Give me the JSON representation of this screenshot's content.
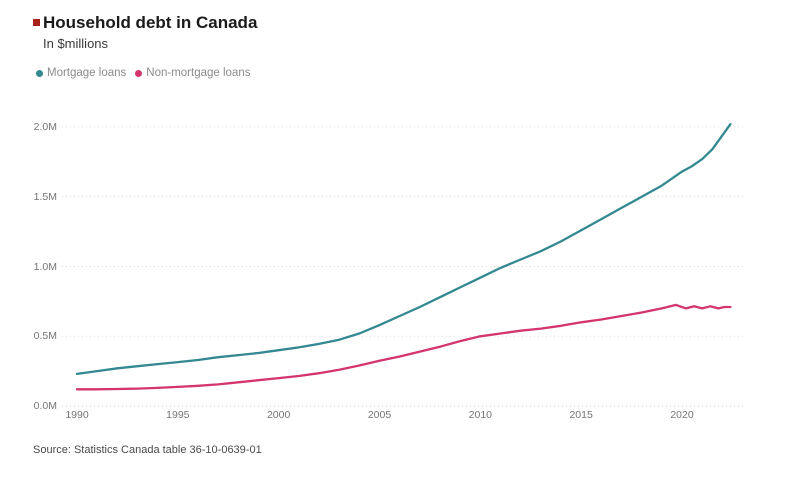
{
  "header": {
    "title": "Household debt in Canada",
    "subtitle": "In $millions",
    "accent_color": "#a8201a"
  },
  "source": {
    "text": "Source:  Statistics Canada table 36-10-0639-01"
  },
  "chart_data": {
    "type": "line",
    "title": "Household debt in Canada",
    "units": "In $millions (axis shown in M = millions of $millions)",
    "xlabel": "",
    "ylabel": "",
    "x_range": [
      1989.6,
      2023.2
    ],
    "y_range": [
      0,
      2.1
    ],
    "grid": "horizontal dotted",
    "legend_position": "top-left",
    "grid_color": "#dcdcdc",
    "axis_text_color": "#757575",
    "xticks": [
      1990,
      1995,
      2000,
      2005,
      2010,
      2015,
      2020
    ],
    "yticks": [
      {
        "v": 0.0,
        "label": "0.0M"
      },
      {
        "v": 0.5,
        "label": "0.5M"
      },
      {
        "v": 1.0,
        "label": "1.0M"
      },
      {
        "v": 1.5,
        "label": "1.5M"
      },
      {
        "v": 2.0,
        "label": "2.0M"
      }
    ],
    "series": [
      {
        "name": "Mortgage loans",
        "color": "#338891",
        "points": [
          [
            1990,
            0.23
          ],
          [
            1991,
            0.25
          ],
          [
            1992,
            0.27
          ],
          [
            1993,
            0.285
          ],
          [
            1994,
            0.3
          ],
          [
            1995,
            0.315
          ],
          [
            1996,
            0.33
          ],
          [
            1997,
            0.35
          ],
          [
            1998,
            0.365
          ],
          [
            1999,
            0.38
          ],
          [
            2000,
            0.4
          ],
          [
            2001,
            0.42
          ],
          [
            2002,
            0.445
          ],
          [
            2003,
            0.475
          ],
          [
            2004,
            0.52
          ],
          [
            2005,
            0.58
          ],
          [
            2006,
            0.645
          ],
          [
            2007,
            0.71
          ],
          [
            2008,
            0.78
          ],
          [
            2009,
            0.85
          ],
          [
            2010,
            0.92
          ],
          [
            2011,
            0.99
          ],
          [
            2012,
            1.05
          ],
          [
            2013,
            1.11
          ],
          [
            2014,
            1.18
          ],
          [
            2015,
            1.26
          ],
          [
            2016,
            1.34
          ],
          [
            2017,
            1.42
          ],
          [
            2018,
            1.5
          ],
          [
            2019,
            1.58
          ],
          [
            2020,
            1.68
          ],
          [
            2020.5,
            1.72
          ],
          [
            2021,
            1.77
          ],
          [
            2021.5,
            1.84
          ],
          [
            2022,
            1.94
          ],
          [
            2022.4,
            2.02
          ]
        ]
      },
      {
        "name": "Non-mortgage loans",
        "color": "#d5356f",
        "points": [
          [
            1990,
            0.12
          ],
          [
            1991,
            0.12
          ],
          [
            1992,
            0.122
          ],
          [
            1993,
            0.125
          ],
          [
            1994,
            0.13
          ],
          [
            1995,
            0.137
          ],
          [
            1996,
            0.145
          ],
          [
            1997,
            0.155
          ],
          [
            1998,
            0.17
          ],
          [
            1999,
            0.185
          ],
          [
            2000,
            0.2
          ],
          [
            2001,
            0.215
          ],
          [
            2002,
            0.235
          ],
          [
            2003,
            0.26
          ],
          [
            2004,
            0.29
          ],
          [
            2005,
            0.325
          ],
          [
            2006,
            0.355
          ],
          [
            2007,
            0.39
          ],
          [
            2008,
            0.425
          ],
          [
            2009,
            0.465
          ],
          [
            2010,
            0.5
          ],
          [
            2011,
            0.52
          ],
          [
            2012,
            0.54
          ],
          [
            2013,
            0.555
          ],
          [
            2014,
            0.575
          ],
          [
            2015,
            0.6
          ],
          [
            2016,
            0.62
          ],
          [
            2017,
            0.645
          ],
          [
            2018,
            0.67
          ],
          [
            2019,
            0.7
          ],
          [
            2019.7,
            0.725
          ],
          [
            2020.2,
            0.7
          ],
          [
            2020.6,
            0.715
          ],
          [
            2021,
            0.7
          ],
          [
            2021.4,
            0.715
          ],
          [
            2021.8,
            0.7
          ],
          [
            2022.1,
            0.71
          ],
          [
            2022.4,
            0.71
          ]
        ]
      }
    ]
  }
}
